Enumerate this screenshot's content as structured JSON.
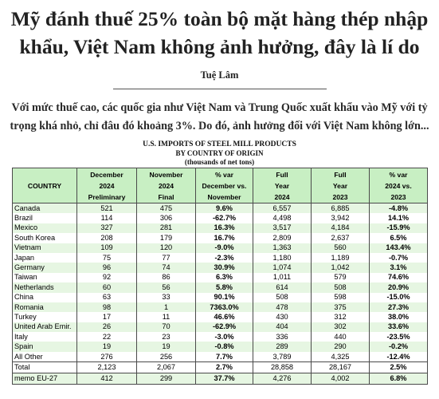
{
  "article": {
    "headline": "Mỹ đánh thuế 25% toàn bộ mặt hàng thép nhập khẩu, Việt Nam không ảnh hưởng, đây là lí do",
    "author": "Tuệ Lâm",
    "sapo": "Với mức thuế cao, các quốc gia như Việt Nam và Trung Quốc xuất khẩu vào Mỹ với tỷ trọng khá nhỏ, chỉ đâu đó khoảng 3%. Do đó, ảnh hưởng đối với Việt Nam không lớn..."
  },
  "table": {
    "title": "U.S. IMPORTS OF STEEL MILL PRODUCTS",
    "subtitle": "BY COUNTRY OF ORIGIN",
    "unit": "(thousands of net tons)",
    "headers": [
      [
        "COUNTRY"
      ],
      [
        "December",
        "2024",
        "Preliminary"
      ],
      [
        "November",
        "2024",
        "Final"
      ],
      [
        "% var",
        "December vs.",
        "November"
      ],
      [
        "Full",
        "Year",
        "2024"
      ],
      [
        "Full",
        "Year",
        "2023"
      ],
      [
        "% var",
        "2024 vs.",
        "2023"
      ]
    ],
    "rows": [
      [
        "Canada",
        "521",
        "475",
        "9.6%",
        "6,557",
        "6,885",
        "-4.8%"
      ],
      [
        "Brazil",
        "114",
        "306",
        "-62.7%",
        "4,498",
        "3,942",
        "14.1%"
      ],
      [
        "Mexico",
        "327",
        "281",
        "16.3%",
        "3,517",
        "4,184",
        "-15.9%"
      ],
      [
        "South Korea",
        "208",
        "179",
        "16.7%",
        "2,809",
        "2,637",
        "6.5%"
      ],
      [
        "Vietnam",
        "109",
        "120",
        "-9.0%",
        "1,363",
        "560",
        "143.4%"
      ],
      [
        "Japan",
        "75",
        "77",
        "-2.3%",
        "1,180",
        "1,189",
        "-0.7%"
      ],
      [
        "Germany",
        "96",
        "74",
        "30.9%",
        "1,074",
        "1,042",
        "3.1%"
      ],
      [
        "Taiwan",
        "92",
        "86",
        "6.3%",
        "1,011",
        "579",
        "74.6%"
      ],
      [
        "Netherlands",
        "60",
        "56",
        "5.8%",
        "614",
        "508",
        "20.9%"
      ],
      [
        "China",
        "63",
        "33",
        "90.1%",
        "508",
        "598",
        "-15.0%"
      ],
      [
        "Romania",
        "98",
        "1",
        "7363.0%",
        "478",
        "375",
        "27.3%"
      ],
      [
        "Turkey",
        "17",
        "11",
        "46.6%",
        "430",
        "312",
        "38.0%"
      ],
      [
        "United Arab Emir.",
        "26",
        "70",
        "-62.9%",
        "404",
        "302",
        "33.6%"
      ],
      [
        "Italy",
        "22",
        "23",
        "-3.0%",
        "336",
        "440",
        "-23.5%"
      ],
      [
        "Spain",
        "19",
        "19",
        "-0.8%",
        "289",
        "290",
        "-0.2%"
      ],
      [
        "All Other",
        "276",
        "256",
        "7.7%",
        "3,789",
        "4,325",
        "-12.4%"
      ]
    ],
    "total": [
      "Total",
      "2,123",
      "2,067",
      "2.7%",
      "28,858",
      "28,167",
      "2.5%"
    ],
    "memo": [
      "memo EU-27",
      "412",
      "299",
      "37.7%",
      "4,276",
      "4,002",
      "6.8%"
    ]
  }
}
